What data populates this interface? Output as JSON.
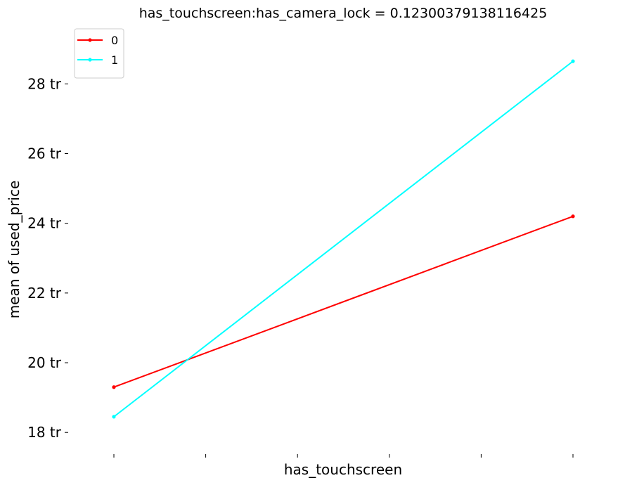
{
  "chart_data": {
    "type": "line",
    "title": "has_touchscreen:has_camera_lock = 0.12300379138116425",
    "xlabel": "has_touchscreen",
    "ylabel": "mean of used_price",
    "x": [
      0,
      1
    ],
    "xlim": [
      0,
      1
    ],
    "x_tick_positions": [
      0,
      0.2,
      0.4,
      0.6,
      0.8,
      1
    ],
    "ylim": [
      17.5,
      29.6
    ],
    "y_ticks": [
      18,
      20,
      22,
      24,
      26,
      28
    ],
    "y_tick_labels": [
      "18 tr",
      "20 tr",
      "22 tr",
      "24 tr",
      "26 tr",
      "28 tr"
    ],
    "grid": false,
    "legend_position": "top-left",
    "series": [
      {
        "name": "0",
        "color": "#ff0000",
        "values": [
          19.3,
          24.2
        ]
      },
      {
        "name": "1",
        "color": "#00ffff",
        "values": [
          18.45,
          28.65
        ]
      }
    ]
  }
}
